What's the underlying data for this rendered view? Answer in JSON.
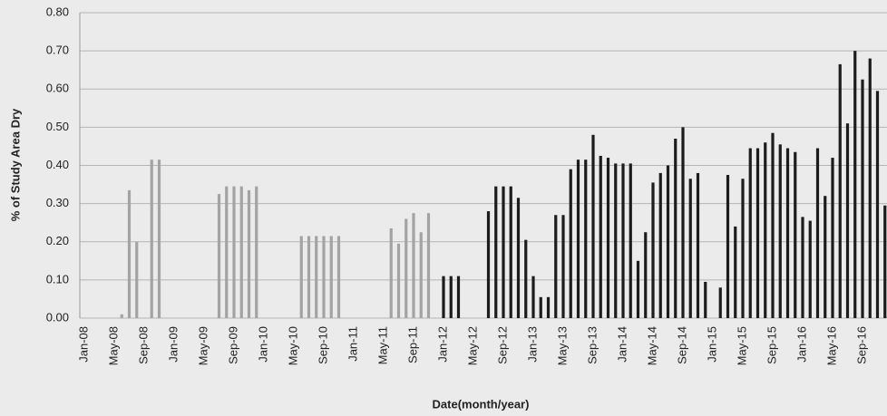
{
  "chart_data": {
    "type": "bar",
    "y_label": "% of Study Area Dry",
    "x_label": "Date(month/year)",
    "categories": [
      "Jan-08",
      null,
      null,
      null,
      "May-08",
      null,
      null,
      null,
      "Sep-08",
      null,
      null,
      null,
      "Jan-09",
      null,
      null,
      null,
      "May-09",
      null,
      null,
      null,
      "Sep-09",
      null,
      null,
      null,
      "Jan-10",
      null,
      null,
      null,
      "May-10",
      null,
      null,
      null,
      "Sep-10",
      null,
      null,
      null,
      "Jan-11",
      null,
      null,
      null,
      "May-11",
      null,
      null,
      null,
      "Sep-11",
      null,
      null,
      null,
      "Jan-12",
      null,
      null,
      null,
      "May-12",
      null,
      null,
      null,
      "Sep-12",
      null,
      null,
      null,
      "Jan-13",
      null,
      null,
      null,
      "May-13",
      null,
      null,
      null,
      "Sep-13",
      null,
      null,
      null,
      "Jan-14",
      null,
      null,
      null,
      "May-14",
      null,
      null,
      null,
      "Sep-14",
      null,
      null,
      null,
      "Jan-15",
      null,
      null,
      null,
      "May-15",
      null,
      null,
      null,
      "Sep-15",
      null,
      null,
      null,
      "Jan-16",
      null,
      null,
      null,
      "May-16",
      null,
      null,
      null,
      "Sep-16",
      null,
      null,
      null
    ],
    "values": [
      null,
      null,
      null,
      null,
      null,
      0.01,
      0.335,
      0.2,
      null,
      0.415,
      0.415,
      null,
      null,
      null,
      null,
      null,
      null,
      null,
      0.325,
      0.345,
      0.345,
      0.345,
      0.335,
      0.345,
      null,
      null,
      null,
      null,
      null,
      0.215,
      0.215,
      0.215,
      0.215,
      0.215,
      0.215,
      null,
      null,
      null,
      null,
      null,
      null,
      0.235,
      0.195,
      0.26,
      0.275,
      0.225,
      0.275,
      null,
      0.11,
      0.11,
      0.11,
      null,
      null,
      null,
      0.28,
      0.345,
      0.345,
      0.345,
      0.315,
      0.205,
      0.11,
      0.055,
      0.055,
      0.27,
      0.27,
      0.39,
      0.415,
      0.415,
      0.48,
      0.425,
      0.42,
      0.405,
      0.405,
      0.405,
      0.15,
      0.225,
      0.355,
      0.38,
      0.4,
      0.47,
      0.5,
      0.365,
      0.38,
      0.095,
      null,
      0.08,
      0.375,
      0.24,
      0.365,
      0.445,
      0.445,
      0.46,
      0.485,
      0.455,
      0.445,
      0.435,
      0.265,
      0.255,
      0.445,
      0.32,
      0.42,
      0.665,
      0.51,
      0.7,
      0.625,
      0.68,
      0.595,
      0.295
    ],
    "colors": [
      "#a3a3a3",
      "#a3a3a3",
      "#a3a3a3",
      "#a3a3a3",
      "#a3a3a3",
      "#a3a3a3",
      "#a3a3a3",
      "#a3a3a3",
      "#a3a3a3",
      "#a3a3a3",
      "#a3a3a3",
      "#a3a3a3",
      "#a3a3a3",
      "#a3a3a3",
      "#a3a3a3",
      "#a3a3a3",
      "#a3a3a3",
      "#a3a3a3",
      "#a3a3a3",
      "#a3a3a3",
      "#a3a3a3",
      "#a3a3a3",
      "#a3a3a3",
      "#a3a3a3",
      "#a3a3a3",
      "#a3a3a3",
      "#a3a3a3",
      "#a3a3a3",
      "#a3a3a3",
      "#a3a3a3",
      "#a3a3a3",
      "#a3a3a3",
      "#a3a3a3",
      "#a3a3a3",
      "#a3a3a3",
      "#a3a3a3",
      "#a3a3a3",
      "#a3a3a3",
      "#a3a3a3",
      "#a3a3a3",
      "#a3a3a3",
      "#a3a3a3",
      "#a3a3a3",
      "#a3a3a3",
      "#a3a3a3",
      "#a3a3a3",
      "#a3a3a3",
      "#a3a3a3",
      "#1c1c1c",
      "#1c1c1c",
      "#1c1c1c",
      "#1c1c1c",
      "#1c1c1c",
      "#1c1c1c",
      "#1c1c1c",
      "#1c1c1c",
      "#1c1c1c",
      "#1c1c1c",
      "#1c1c1c",
      "#1c1c1c",
      "#1c1c1c",
      "#1c1c1c",
      "#1c1c1c",
      "#1c1c1c",
      "#1c1c1c",
      "#1c1c1c",
      "#1c1c1c",
      "#1c1c1c",
      "#1c1c1c",
      "#1c1c1c",
      "#1c1c1c",
      "#1c1c1c",
      "#1c1c1c",
      "#1c1c1c",
      "#1c1c1c",
      "#1c1c1c",
      "#1c1c1c",
      "#1c1c1c",
      "#1c1c1c",
      "#1c1c1c",
      "#1c1c1c",
      "#1c1c1c",
      "#1c1c1c",
      "#1c1c1c",
      "#1c1c1c",
      "#1c1c1c",
      "#1c1c1c",
      "#1c1c1c",
      "#1c1c1c",
      "#1c1c1c",
      "#1c1c1c",
      "#1c1c1c",
      "#1c1c1c",
      "#1c1c1c",
      "#1c1c1c",
      "#1c1c1c",
      "#1c1c1c",
      "#1c1c1c",
      "#1c1c1c",
      "#1c1c1c",
      "#1c1c1c",
      "#1c1c1c",
      "#1c1c1c",
      "#1c1c1c",
      "#1c1c1c",
      "#1c1c1c",
      "#1c1c1c",
      "#1c1c1c"
    ],
    "ylim": [
      0,
      0.8
    ],
    "yticks": [
      {
        "value": 0,
        "label": "0.00"
      },
      {
        "value": 0.1,
        "label": "0.10"
      },
      {
        "value": 0.2,
        "label": "0.20"
      },
      {
        "value": 0.3,
        "label": "0.30"
      },
      {
        "value": 0.4,
        "label": "0.40"
      },
      {
        "value": 0.5,
        "label": "0.50"
      },
      {
        "value": 0.6,
        "label": "0.60"
      },
      {
        "value": 0.7,
        "label": "0.70"
      },
      {
        "value": 0.8,
        "label": "0.80"
      }
    ],
    "grid": true
  }
}
